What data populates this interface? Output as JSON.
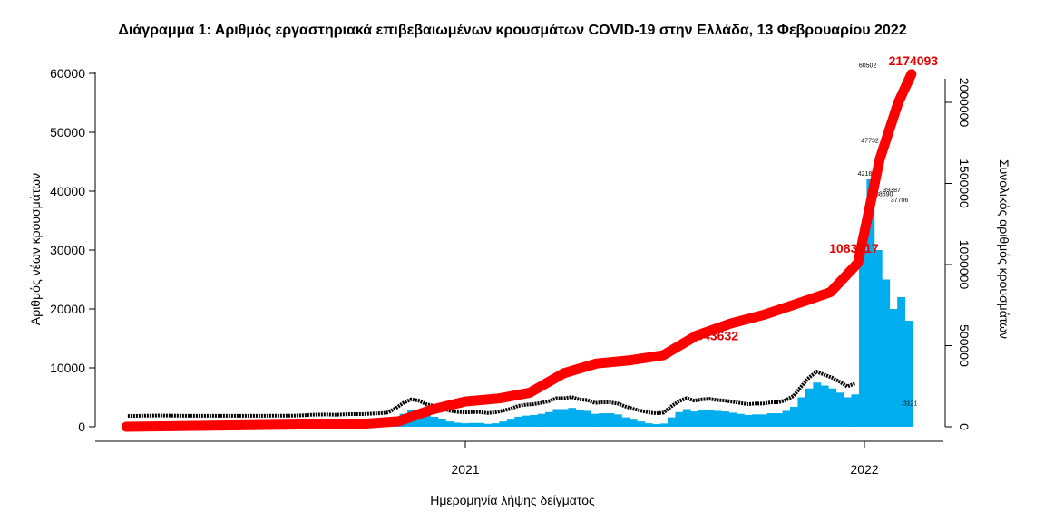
{
  "chart_data": {
    "type": "bar+line",
    "title": "Διάγραμμα 1: Αριθμός εργαστηριακά επιβεβαιωμένων κρουσμάτων COVID-19 στην Ελλάδα, 13 Φεβρουαρίου 2022",
    "xlabel": "Ημερομηνία λήψης δείγματος",
    "ylabel": "Αριθμός νέων κρουσμάτων",
    "y2label": "Συνολικός αριθμός κρουσμάτων",
    "xticks": [
      {
        "date": "2021-01-01",
        "label": "2021"
      },
      {
        "date": "2022-01-01",
        "label": "2022"
      }
    ],
    "xlim": [
      "2020-02-10",
      "2022-03-25"
    ],
    "ylim": [
      0,
      60000
    ],
    "yticks": [
      0,
      10000,
      20000,
      30000,
      40000,
      50000,
      60000
    ],
    "y2lim": [
      0,
      2180000
    ],
    "y2ticks": [
      0,
      500000,
      1000000,
      1500000,
      2000000
    ],
    "colors": {
      "bars": "#00aeef",
      "cumulative": "#ff0000",
      "labels": "#000000"
    },
    "new_cases_weekly": {
      "dates": [
        "2020-02-24",
        "2020-03-02",
        "2020-03-09",
        "2020-03-16",
        "2020-03-23",
        "2020-03-30",
        "2020-04-06",
        "2020-04-13",
        "2020-04-20",
        "2020-04-27",
        "2020-05-04",
        "2020-05-11",
        "2020-05-18",
        "2020-05-25",
        "2020-06-01",
        "2020-06-08",
        "2020-06-15",
        "2020-06-22",
        "2020-06-29",
        "2020-07-06",
        "2020-07-13",
        "2020-07-20",
        "2020-07-27",
        "2020-08-03",
        "2020-08-10",
        "2020-08-17",
        "2020-08-24",
        "2020-08-31",
        "2020-09-07",
        "2020-09-14",
        "2020-09-21",
        "2020-09-28",
        "2020-10-05",
        "2020-10-12",
        "2020-10-19",
        "2020-10-26",
        "2020-11-02",
        "2020-11-09",
        "2020-11-16",
        "2020-11-23",
        "2020-11-30",
        "2020-12-07",
        "2020-12-14",
        "2020-12-21",
        "2020-12-28",
        "2021-01-04",
        "2021-01-11",
        "2021-01-18",
        "2021-01-25",
        "2021-02-01",
        "2021-02-08",
        "2021-02-15",
        "2021-02-22",
        "2021-03-01",
        "2021-03-08",
        "2021-03-15",
        "2021-03-22",
        "2021-03-29",
        "2021-04-05",
        "2021-04-12",
        "2021-04-19",
        "2021-04-26",
        "2021-05-03",
        "2021-05-10",
        "2021-05-17",
        "2021-05-24",
        "2021-05-31",
        "2021-06-07",
        "2021-06-14",
        "2021-06-21",
        "2021-06-28",
        "2021-07-05",
        "2021-07-12",
        "2021-07-19",
        "2021-07-26",
        "2021-08-02",
        "2021-08-09",
        "2021-08-16",
        "2021-08-23",
        "2021-08-30",
        "2021-09-06",
        "2021-09-13",
        "2021-09-20",
        "2021-09-27",
        "2021-10-04",
        "2021-10-11",
        "2021-10-18",
        "2021-10-25",
        "2021-11-01",
        "2021-11-08",
        "2021-11-15",
        "2021-11-22",
        "2021-11-29",
        "2021-12-06",
        "2021-12-13",
        "2021-12-20",
        "2021-12-27",
        "2022-01-03",
        "2022-01-10",
        "2022-01-17",
        "2022-01-24",
        "2022-01-31",
        "2022-02-07"
      ],
      "values": [
        0,
        5,
        30,
        50,
        70,
        60,
        40,
        30,
        20,
        10,
        10,
        10,
        10,
        10,
        10,
        15,
        20,
        20,
        30,
        30,
        30,
        35,
        50,
        110,
        200,
        230,
        250,
        200,
        250,
        300,
        300,
        320,
        400,
        450,
        600,
        1300,
        2200,
        2800,
        2600,
        2000,
        1700,
        1300,
        900,
        700,
        600,
        650,
        650,
        500,
        600,
        900,
        1200,
        1700,
        1900,
        2000,
        2200,
        2500,
        3000,
        3000,
        3200,
        2800,
        2700,
        2200,
        2300,
        2300,
        2100,
        1600,
        1200,
        900,
        600,
        450,
        550,
        1600,
        2500,
        3000,
        2600,
        2800,
        2900,
        2700,
        2600,
        2400,
        2200,
        2000,
        2100,
        2100,
        2300,
        2300,
        2700,
        3400,
        5000,
        6500,
        7500,
        7000,
        6500,
        5800,
        5000,
        5500,
        30000,
        42000,
        30000,
        25000,
        20000,
        22000,
        18000
      ]
    },
    "daily_annotations": [
      {
        "date": "2022-01-04",
        "value": "60502"
      },
      {
        "date": "2022-01-06",
        "value": "47732"
      },
      {
        "date": "2022-01-03",
        "value": "42185"
      },
      {
        "date": "2022-01-26",
        "value": "39387"
      },
      {
        "date": "2022-01-19",
        "value": "38690"
      },
      {
        "date": "2022-02-02",
        "value": "37706"
      },
      {
        "date": "2022-02-12",
        "value": "3121"
      }
    ],
    "cumulative": {
      "dates": [
        "2020-02-26",
        "2020-10-01",
        "2020-11-01",
        "2020-12-01",
        "2021-01-01",
        "2021-02-01",
        "2021-03-01",
        "2021-04-01",
        "2021-05-01",
        "2021-06-01",
        "2021-07-01",
        "2021-08-01",
        "2021-09-01",
        "2021-10-01",
        "2021-11-01",
        "2021-12-01",
        "2021-12-26",
        "2022-01-01",
        "2022-01-15",
        "2022-02-01",
        "2022-02-13"
      ],
      "values": [
        0,
        19000,
        34000,
        105000,
        156000,
        175000,
        210000,
        330000,
        390000,
        410000,
        441000,
        564000,
        637000,
        690000,
        760000,
        830000,
        1010000,
        1200000,
        1650000,
        2000000,
        2174093
      ]
    },
    "cumulative_labels": [
      {
        "date": "2021-08-26",
        "value": "543632",
        "label": "543632"
      },
      {
        "date": "2021-12-29",
        "value": "1083717",
        "label": "1083717"
      },
      {
        "date": "2022-02-13",
        "value": "2174093",
        "label": "2174093"
      }
    ]
  }
}
